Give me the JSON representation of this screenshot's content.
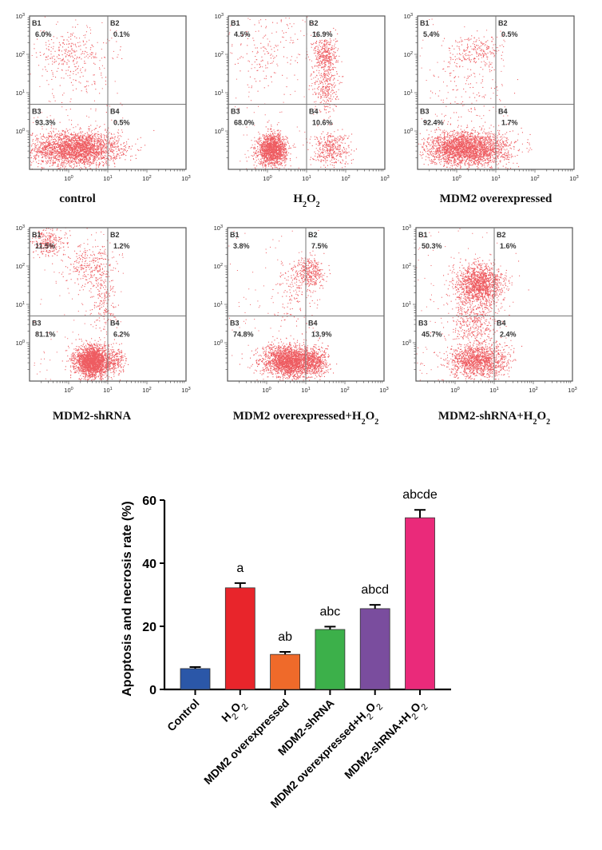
{
  "chart_data": [
    {
      "type": "scatter",
      "subtype": "flow-cytometry-quadrant",
      "title": "control",
      "title_html": "control",
      "quadrants": {
        "B1": "6.0%",
        "B2": "0.1%",
        "B3": "93.3%",
        "B4": "0.5%"
      },
      "x_ticks": [
        "10^0",
        "10^1",
        "10^2",
        "10^3"
      ],
      "y_ticks": [
        "10^0",
        "10^1",
        "10^2",
        "10^3"
      ],
      "xscale": "log",
      "yscale": "log",
      "xlim": [
        0.1,
        1000
      ],
      "ylim": [
        0.1,
        1000
      ],
      "gate": {
        "x": 10,
        "y": 5
      },
      "clusters": [
        {
          "quad": "B3",
          "cx": 1.5,
          "cy": 0.35,
          "sx": 0.55,
          "sy": 0.22,
          "n": 2600
        },
        {
          "quad": "B1",
          "cx": 1.0,
          "cy": 120,
          "sx": 0.55,
          "sy": 0.25,
          "n": 220
        },
        {
          "quad": "B1",
          "cx": 1.5,
          "cy": 20,
          "sx": 0.5,
          "sy": 0.4,
          "n": 100
        },
        {
          "quad": "B4",
          "cx": 15,
          "cy": 0.35,
          "sx": 0.12,
          "sy": 0.2,
          "n": 30
        }
      ]
    },
    {
      "type": "scatter",
      "subtype": "flow-cytometry-quadrant",
      "title": "H2O2",
      "title_html": "H<tspan baseline-shift='sub' font-size='10'>2</tspan>O<tspan baseline-shift='sub' font-size='10'>2</tspan>",
      "quadrants": {
        "B1": "4.5%",
        "B2": "16.9%",
        "B3": "68.0%",
        "B4": "10.6%"
      },
      "x_ticks": [
        "10^0",
        "10^1",
        "10^2",
        "10^3"
      ],
      "y_ticks": [
        "10^0",
        "10^1",
        "10^2",
        "10^3"
      ],
      "xscale": "log",
      "yscale": "log",
      "xlim": [
        0.1,
        1000
      ],
      "ylim": [
        0.1,
        1000
      ],
      "gate": {
        "x": 10,
        "y": 5
      },
      "clusters": [
        {
          "quad": "B3",
          "cx": 1.3,
          "cy": 0.33,
          "sx": 0.18,
          "sy": 0.2,
          "n": 1600
        },
        {
          "quad": "B2",
          "cx": 30,
          "cy": 100,
          "sx": 0.15,
          "sy": 0.25,
          "n": 350
        },
        {
          "quad": "B2",
          "cx": 30,
          "cy": 15,
          "sx": 0.15,
          "sy": 0.35,
          "n": 300
        },
        {
          "quad": "B4",
          "cx": 40,
          "cy": 0.35,
          "sx": 0.25,
          "sy": 0.22,
          "n": 400
        },
        {
          "quad": "B1",
          "cx": 0.8,
          "cy": 100,
          "sx": 0.5,
          "sy": 0.45,
          "n": 150
        }
      ]
    },
    {
      "type": "scatter",
      "subtype": "flow-cytometry-quadrant",
      "title": "MDM2 overexpressed",
      "title_html": "MDM2 overexpressed",
      "quadrants": {
        "B1": "5.4%",
        "B2": "0.5%",
        "B3": "92.4%",
        "B4": "1.7%"
      },
      "x_ticks": [
        "10^0",
        "10^1",
        "10^2",
        "10^3"
      ],
      "y_ticks": [
        "10^0",
        "10^1",
        "10^2",
        "10^3"
      ],
      "xscale": "log",
      "yscale": "log",
      "xlim": [
        0.1,
        1000
      ],
      "ylim": [
        0.1,
        1000
      ],
      "gate": {
        "x": 10,
        "y": 5
      },
      "clusters": [
        {
          "quad": "B3",
          "cx": 1.8,
          "cy": 0.35,
          "sx": 0.5,
          "sy": 0.22,
          "n": 2600
        },
        {
          "quad": "B1",
          "cx": 3,
          "cy": 120,
          "sx": 0.35,
          "sy": 0.2,
          "n": 220
        },
        {
          "quad": "B1",
          "cx": 2,
          "cy": 15,
          "sx": 0.45,
          "sy": 0.4,
          "n": 100
        },
        {
          "quad": "B4",
          "cx": 15,
          "cy": 0.35,
          "sx": 0.15,
          "sy": 0.2,
          "n": 60
        }
      ]
    },
    {
      "type": "scatter",
      "subtype": "flow-cytometry-quadrant",
      "title": "MDM2-shRNA",
      "title_html": "MDM2-shRNA",
      "quadrants": {
        "B1": "11.5%",
        "B2": "1.2%",
        "B3": "81.1%",
        "B4": "6.2%"
      },
      "x_ticks": [
        "10^0",
        "10^1",
        "10^2",
        "10^3"
      ],
      "y_ticks": [
        "10^0",
        "10^1",
        "10^2",
        "10^3"
      ],
      "xscale": "log",
      "yscale": "log",
      "xlim": [
        0.1,
        1000
      ],
      "ylim": [
        0.1,
        1000
      ],
      "gate": {
        "x": 10,
        "y": 5
      },
      "clusters": [
        {
          "quad": "B3",
          "cx": 4,
          "cy": 0.33,
          "sx": 0.22,
          "sy": 0.2,
          "n": 2300
        },
        {
          "quad": "B1",
          "cx": 0.3,
          "cy": 450,
          "sx": 0.2,
          "sy": 0.2,
          "n": 250
        },
        {
          "quad": "B1",
          "cx": 4,
          "cy": 100,
          "sx": 0.3,
          "sy": 0.3,
          "n": 300
        },
        {
          "quad": "B1",
          "cx": 8,
          "cy": 10,
          "sx": 0.15,
          "sy": 0.35,
          "n": 150
        },
        {
          "quad": "B4",
          "cx": 15,
          "cy": 0.35,
          "sx": 0.15,
          "sy": 0.2,
          "n": 200
        }
      ]
    },
    {
      "type": "scatter",
      "subtype": "flow-cytometry-quadrant",
      "title": "MDM2 overexpressed+H2O2",
      "title_html": "MDM2 overexpressed+H<tspan baseline-shift='sub' font-size='10'>2</tspan>O<tspan baseline-shift='sub' font-size='10'>2</tspan>",
      "quadrants": {
        "B1": "3.8%",
        "B2": "7.5%",
        "B3": "74.8%",
        "B4": "13.9%"
      },
      "x_ticks": [
        "10^0",
        "10^1",
        "10^2",
        "10^3"
      ],
      "y_ticks": [
        "10^0",
        "10^1",
        "10^2",
        "10^3"
      ],
      "xscale": "log",
      "yscale": "log",
      "xlim": [
        0.1,
        1000
      ],
      "ylim": [
        0.1,
        1000
      ],
      "gate": {
        "x": 10,
        "y": 5
      },
      "clusters": [
        {
          "quad": "B3",
          "cx": 4,
          "cy": 0.33,
          "sx": 0.35,
          "sy": 0.2,
          "n": 2300
        },
        {
          "quad": "B2",
          "cx": 12,
          "cy": 70,
          "sx": 0.2,
          "sy": 0.2,
          "n": 350
        },
        {
          "quad": "B1",
          "cx": 5,
          "cy": 20,
          "sx": 0.3,
          "sy": 0.4,
          "n": 120
        },
        {
          "quad": "B4",
          "cx": 18,
          "cy": 0.33,
          "sx": 0.15,
          "sy": 0.2,
          "n": 350
        }
      ]
    },
    {
      "type": "scatter",
      "subtype": "flow-cytometry-quadrant",
      "title": "MDM2-shRNA+H2O2",
      "title_html": "MDM2-shRNA+H<tspan baseline-shift='sub' font-size='10'>2</tspan>O<tspan baseline-shift='sub' font-size='10'>2</tspan>",
      "quadrants": {
        "B1": "50.3%",
        "B2": "1.6%",
        "B3": "45.7%",
        "B4": "2.4%"
      },
      "x_ticks": [
        "10^0",
        "10^1",
        "10^2",
        "10^3"
      ],
      "y_ticks": [
        "10^0",
        "10^1",
        "10^2",
        "10^3"
      ],
      "xscale": "log",
      "yscale": "log",
      "xlim": [
        0.1,
        1000
      ],
      "ylim": [
        0.1,
        1000
      ],
      "gate": {
        "x": 10,
        "y": 5
      },
      "clusters": [
        {
          "quad": "B1",
          "cx": 4,
          "cy": 35,
          "sx": 0.3,
          "sy": 0.25,
          "n": 1400
        },
        {
          "quad": "B1",
          "cx": 3,
          "cy": 8,
          "sx": 0.3,
          "sy": 0.3,
          "n": 250
        },
        {
          "quad": "B3",
          "cx": 3.5,
          "cy": 0.33,
          "sx": 0.35,
          "sy": 0.22,
          "n": 1300
        },
        {
          "quad": "B3",
          "cx": 3,
          "cy": 2,
          "sx": 0.3,
          "sy": 0.3,
          "n": 250
        },
        {
          "quad": "B4",
          "cx": 15,
          "cy": 0.35,
          "sx": 0.15,
          "sy": 0.2,
          "n": 50
        }
      ]
    },
    {
      "type": "bar",
      "title": "",
      "xlabel": "",
      "ylabel": "Apoptosis and necrosis rate (%)",
      "ylim": [
        0,
        60
      ],
      "yticks": [
        0,
        20,
        40,
        60
      ],
      "categories": [
        "Control",
        "H2O2",
        "MDM2 overexpressed",
        "MDM2-shRNA",
        "MDM2 overexpressed+H2O2",
        "MDM2-shRNA+H2O2"
      ],
      "categories_html": [
        "Control",
        "H<tspan baseline-shift='sub' font-size='11' font-weight='normal'>2</tspan>O<tspan baseline-shift='sub' font-size='11' font-weight='normal'>2</tspan>",
        "MDM2 overexpressed",
        "MDM2-shRNA",
        "MDM2 overexpressed+H<tspan baseline-shift='sub' font-size='11' font-weight='normal'>2</tspan>O<tspan baseline-shift='sub' font-size='11' font-weight='normal'>2</tspan>",
        "MDM2-shRNA+H<tspan baseline-shift='sub' font-size='11' font-weight='normal'>2</tspan>O<tspan baseline-shift='sub' font-size='11' font-weight='normal'>2</tspan>"
      ],
      "values": [
        6.6,
        32.2,
        11.1,
        19.0,
        25.6,
        54.4
      ],
      "errors": [
        0.5,
        1.5,
        0.8,
        0.9,
        1.2,
        2.5
      ],
      "significance": [
        "",
        "a",
        "ab",
        "abc",
        "abcd",
        "abcde"
      ],
      "colors": [
        "#2b57a8",
        "#e8252b",
        "#ef6a2a",
        "#3cb04a",
        "#7a4d9e",
        "#ea2a7a"
      ]
    }
  ],
  "colors": {
    "dot": "#e8262c",
    "frame": "#555555",
    "gate_line": "#777777"
  }
}
